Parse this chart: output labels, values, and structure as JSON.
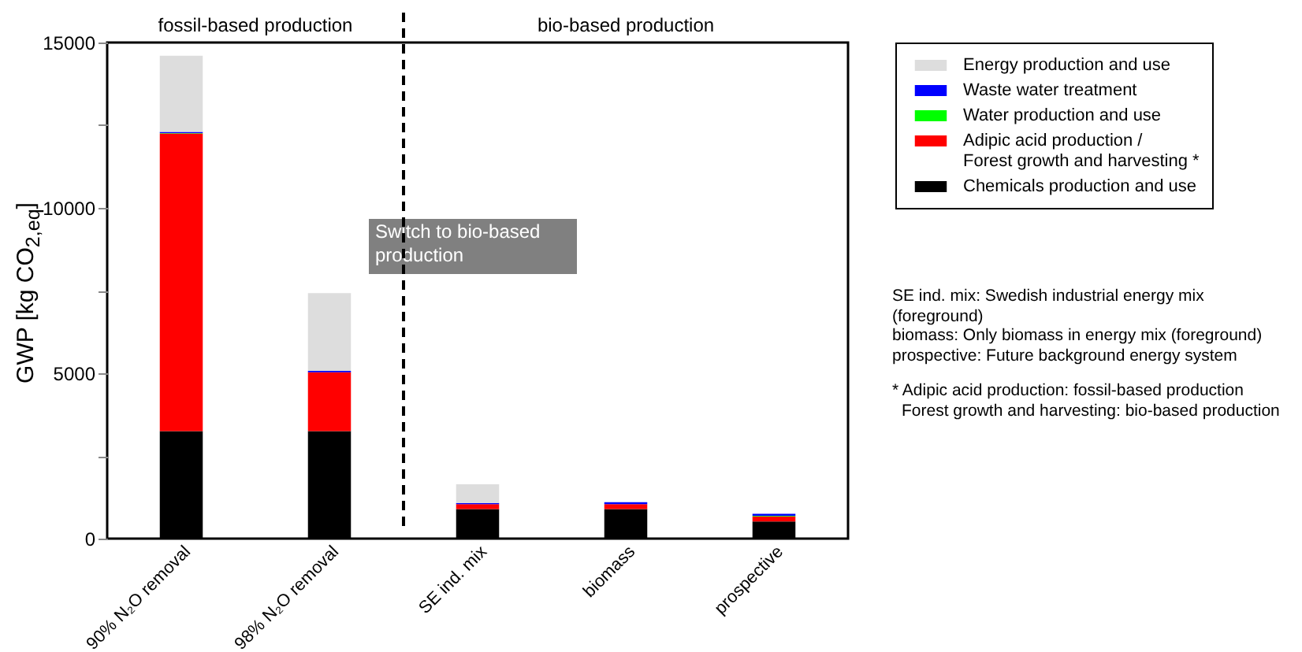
{
  "chart_data": {
    "type": "bar",
    "stacked": true,
    "ylabel": "GWP [kg CO$_{2,eq}$]",
    "categories": [
      "90% N₂O removal",
      "98% N₂O removal",
      "SE ind. mix",
      "biomass",
      "prospective"
    ],
    "series": [
      {
        "name": "Chemicals production and use",
        "color": "#000000",
        "values": [
          3250,
          3250,
          890,
          890,
          520
        ]
      },
      {
        "name": "Adipic acid production / Forest growth and harvesting *",
        "color": "#ff0000",
        "values": [
          9000,
          1780,
          150,
          150,
          150
        ]
      },
      {
        "name": "Water production and use",
        "color": "#00ff00",
        "values": [
          10,
          null,
          null,
          null,
          20
        ]
      },
      {
        "name": "Waste water treatment",
        "color": "#0000ff",
        "values": [
          40,
          40,
          40,
          60,
          60
        ]
      },
      {
        "name": "Energy production and use",
        "color": "#dddddd",
        "values": [
          2300,
          2350,
          560,
          null,
          null
        ]
      }
    ],
    "ylim": [
      0,
      15000
    ],
    "yticks": [
      0,
      {
        "value": 2500,
        "label": null
      },
      5000,
      {
        "value": 7500,
        "label": null
      },
      10000,
      {
        "value": 12500,
        "label": null
      },
      15000
    ],
    "legend": "top right",
    "annotations": [
      "fossil-based production",
      "bio-based production",
      "Switch to bio-based production",
      "SE ind. mix: Swedish industrial energy mix (foreground)",
      "biomass: Only biomass in energy mix (foreground)",
      "prospective: Future background energy system",
      "* Adipic acid production: fossil-based production",
      "Forest growth and harvesting: bio-based production"
    ]
  }
}
